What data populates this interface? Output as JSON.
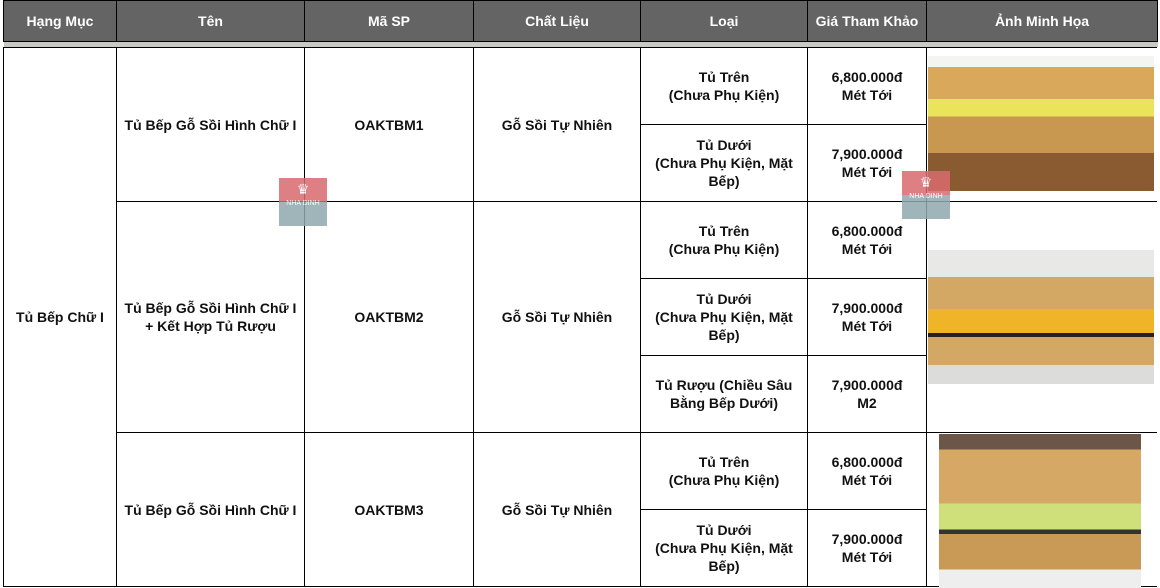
{
  "headers": [
    "Hạng Mục",
    "Tên",
    "Mã SP",
    "Chất Liệu",
    "Loại",
    "Giá Tham Khảo",
    "Ảnh Minh Họa"
  ],
  "category": "Tủ Bếp Chữ I",
  "watermark": "NHA DINH",
  "products": [
    {
      "name": "Tủ Bếp Gỗ Sồi Hình Chữ I",
      "code": "OAKTBM1",
      "material": "Gỗ Sồi Tự Nhiên",
      "items": [
        {
          "type": "Tủ Trên\n(Chưa Phụ Kiện)",
          "price": "6,800.000đ\nMét Tới"
        },
        {
          "type": "Tủ Dưới\n(Chưa Phụ Kiện, Mặt Bếp)",
          "price": "7,900.000đ\nMét Tới"
        }
      ]
    },
    {
      "name": "Tủ Bếp Gỗ Sồi Hình Chữ I + Kết Hợp Tủ Rượu",
      "code": "OAKTBM2",
      "material": "Gỗ Sồi Tự Nhiên",
      "items": [
        {
          "type": "Tủ Trên\n(Chưa Phụ Kiện)",
          "price": "6,800.000đ\nMét Tới"
        },
        {
          "type": "Tủ Dưới\n(Chưa Phụ Kiện, Mặt Bếp)",
          "price": "7,900.000đ\nMét Tới"
        },
        {
          "type": "Tủ Rượu (Chiều Sâu Bằng Bếp Dưới)",
          "price": "7,900.000đ\nM2"
        }
      ]
    },
    {
      "name": "Tủ Bếp Gỗ Sồi Hình Chữ I",
      "code": "OAKTBM3",
      "material": "Gỗ Sồi Tự Nhiên",
      "items": [
        {
          "type": "Tủ Trên\n(Chưa Phụ Kiện)",
          "price": "6,800.000đ\nMét Tới"
        },
        {
          "type": "Tủ Dưới\n(Chưa Phụ Kiện, Mặt Bếp)",
          "price": "7,900.000đ\nMét Tới"
        }
      ]
    }
  ]
}
